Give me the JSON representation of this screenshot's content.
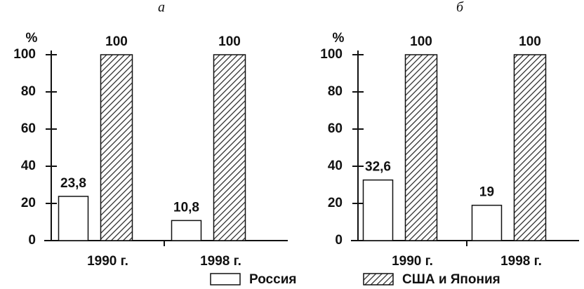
{
  "chart_data": [
    {
      "type": "bar",
      "title": "а",
      "ylabel": "%",
      "categories": [
        "1990 г.",
        "1998 г."
      ],
      "series": [
        {
          "name": "Россия",
          "color": "#ffffff",
          "values": [
            23.8,
            10.8
          ],
          "value_labels": [
            "23,8",
            "10,8"
          ]
        },
        {
          "name": "США и Япония",
          "color": "hatch",
          "values": [
            100,
            100
          ]
        }
      ],
      "ylim": [
        0,
        100
      ],
      "yticks": [
        0,
        20,
        40,
        60,
        80,
        100
      ]
    },
    {
      "type": "bar",
      "title": "б",
      "ylabel": "%",
      "categories": [
        "1990 г.",
        "1998 г."
      ],
      "series": [
        {
          "name": "Россия",
          "color": "#ffffff",
          "values": [
            32.6,
            19
          ],
          "value_labels": [
            "32,6",
            "19"
          ]
        },
        {
          "name": "США и Япония",
          "color": "hatch",
          "values": [
            100,
            100
          ]
        }
      ],
      "ylim": [
        0,
        100
      ],
      "yticks": [
        0,
        20,
        40,
        60,
        80,
        100
      ]
    }
  ]
}
